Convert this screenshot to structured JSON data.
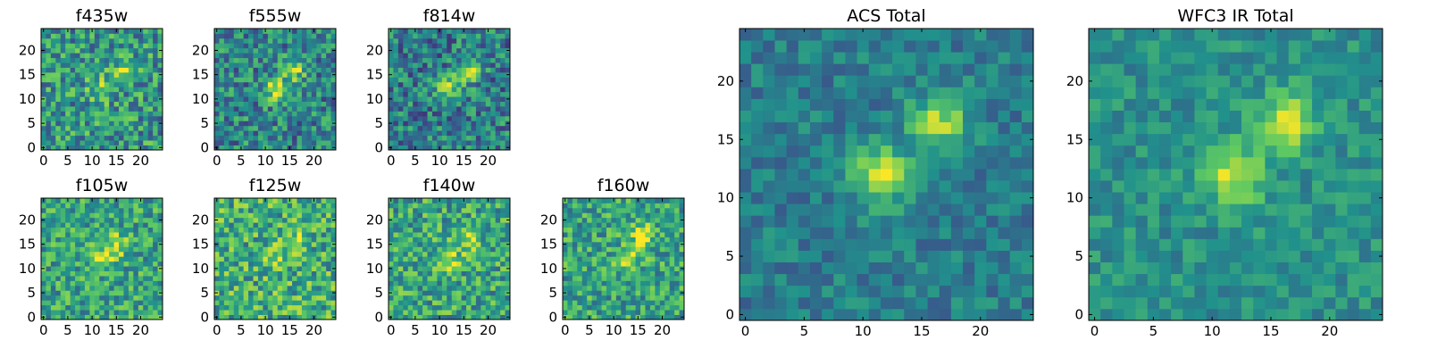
{
  "chart_data": [
    {
      "type": "heatmap",
      "title": "f435w",
      "grid": [
        25,
        25
      ],
      "hotspots": [
        {
          "x": 12,
          "y": 12,
          "amp": 0.35
        },
        {
          "x": 17,
          "y": 16,
          "amp": 0.35
        }
      ],
      "noise": 0.28,
      "base": 0.52,
      "xticks": [
        0,
        5,
        10,
        15,
        20
      ],
      "yticks": [
        0,
        5,
        10,
        15,
        20
      ],
      "xlim": [
        -0.5,
        24.5
      ],
      "ylim": [
        -0.5,
        24.5
      ]
    },
    {
      "type": "heatmap",
      "title": "f555w",
      "grid": [
        25,
        25
      ],
      "hotspots": [
        {
          "x": 12,
          "y": 12,
          "amp": 0.4
        },
        {
          "x": 16,
          "y": 16,
          "amp": 0.35
        }
      ],
      "noise": 0.26,
      "base": 0.45,
      "xticks": [
        0,
        5,
        10,
        15,
        20
      ],
      "yticks": [
        0,
        5,
        10,
        15,
        20
      ],
      "xlim": [
        -0.5,
        24.5
      ],
      "ylim": [
        -0.5,
        24.5
      ]
    },
    {
      "type": "heatmap",
      "title": "f814w",
      "grid": [
        25,
        25
      ],
      "hotspots": [
        {
          "x": 12,
          "y": 12,
          "amp": 0.4
        },
        {
          "x": 16,
          "y": 16,
          "amp": 0.4
        }
      ],
      "noise": 0.26,
      "base": 0.42,
      "xticks": [
        0,
        5,
        10,
        15,
        20
      ],
      "yticks": [
        0,
        5,
        10,
        15,
        20
      ],
      "xlim": [
        -0.5,
        24.5
      ],
      "ylim": [
        -0.5,
        24.5
      ]
    },
    {
      "type": "heatmap",
      "title": "f105w",
      "grid": [
        25,
        25
      ],
      "hotspots": [
        {
          "x": 12,
          "y": 12,
          "amp": 0.3
        },
        {
          "x": 15,
          "y": 15,
          "amp": 0.3
        }
      ],
      "noise": 0.24,
      "base": 0.58,
      "xticks": [
        0,
        5,
        10,
        15,
        20
      ],
      "yticks": [
        0,
        5,
        10,
        15,
        20
      ],
      "xlim": [
        -0.5,
        24.5
      ],
      "ylim": [
        -0.5,
        24.5
      ]
    },
    {
      "type": "heatmap",
      "title": "f125w",
      "grid": [
        25,
        25
      ],
      "hotspots": [
        {
          "x": 12,
          "y": 12,
          "amp": 0.25
        },
        {
          "x": 16,
          "y": 16,
          "amp": 0.25
        }
      ],
      "noise": 0.28,
      "base": 0.62,
      "xticks": [
        0,
        5,
        10,
        15,
        20
      ],
      "yticks": [
        0,
        5,
        10,
        15,
        20
      ],
      "xlim": [
        -0.5,
        24.5
      ],
      "ylim": [
        -0.5,
        24.5
      ]
    },
    {
      "type": "heatmap",
      "title": "f140w",
      "grid": [
        25,
        25
      ],
      "hotspots": [
        {
          "x": 12,
          "y": 12,
          "amp": 0.3
        },
        {
          "x": 16,
          "y": 16,
          "amp": 0.3
        }
      ],
      "noise": 0.26,
      "base": 0.58,
      "xticks": [
        0,
        5,
        10,
        15,
        20
      ],
      "yticks": [
        0,
        5,
        10,
        15,
        20
      ],
      "xlim": [
        -0.5,
        24.5
      ],
      "ylim": [
        -0.5,
        24.5
      ]
    },
    {
      "type": "heatmap",
      "title": "f160w",
      "grid": [
        25,
        25
      ],
      "hotspots": [
        {
          "x": 13,
          "y": 12,
          "amp": 0.3
        },
        {
          "x": 16,
          "y": 17,
          "amp": 0.35
        }
      ],
      "noise": 0.24,
      "base": 0.58,
      "xticks": [
        0,
        5,
        10,
        15,
        20
      ],
      "yticks": [
        0,
        5,
        10,
        15,
        20
      ],
      "xlim": [
        -0.5,
        24.5
      ],
      "ylim": [
        -0.5,
        24.5
      ]
    },
    {
      "type": "heatmap",
      "title": "ACS Total",
      "grid": [
        25,
        25
      ],
      "hotspots": [
        {
          "x": 11.5,
          "y": 12,
          "amp": 0.5
        },
        {
          "x": 16.5,
          "y": 16.5,
          "amp": 0.45
        }
      ],
      "noise": 0.14,
      "base": 0.42,
      "xticks": [
        0,
        5,
        10,
        15,
        20
      ],
      "yticks": [
        0,
        5,
        10,
        15,
        20
      ],
      "xlim": [
        -0.5,
        24.5
      ],
      "ylim": [
        -0.5,
        24.5
      ]
    },
    {
      "type": "heatmap",
      "title": "WFC3 IR Total",
      "grid": [
        25,
        25
      ],
      "hotspots": [
        {
          "x": 12,
          "y": 12,
          "amp": 0.45
        },
        {
          "x": 16.5,
          "y": 16.5,
          "amp": 0.42
        }
      ],
      "noise": 0.13,
      "base": 0.5,
      "xticks": [
        0,
        5,
        10,
        15,
        20
      ],
      "yticks": [
        0,
        5,
        10,
        15,
        20
      ],
      "xlim": [
        -0.5,
        24.5
      ],
      "ylim": [
        -0.5,
        24.5
      ]
    }
  ],
  "colormap": [
    "#440154",
    "#3b528b",
    "#21918c",
    "#5ec962",
    "#fde725"
  ]
}
